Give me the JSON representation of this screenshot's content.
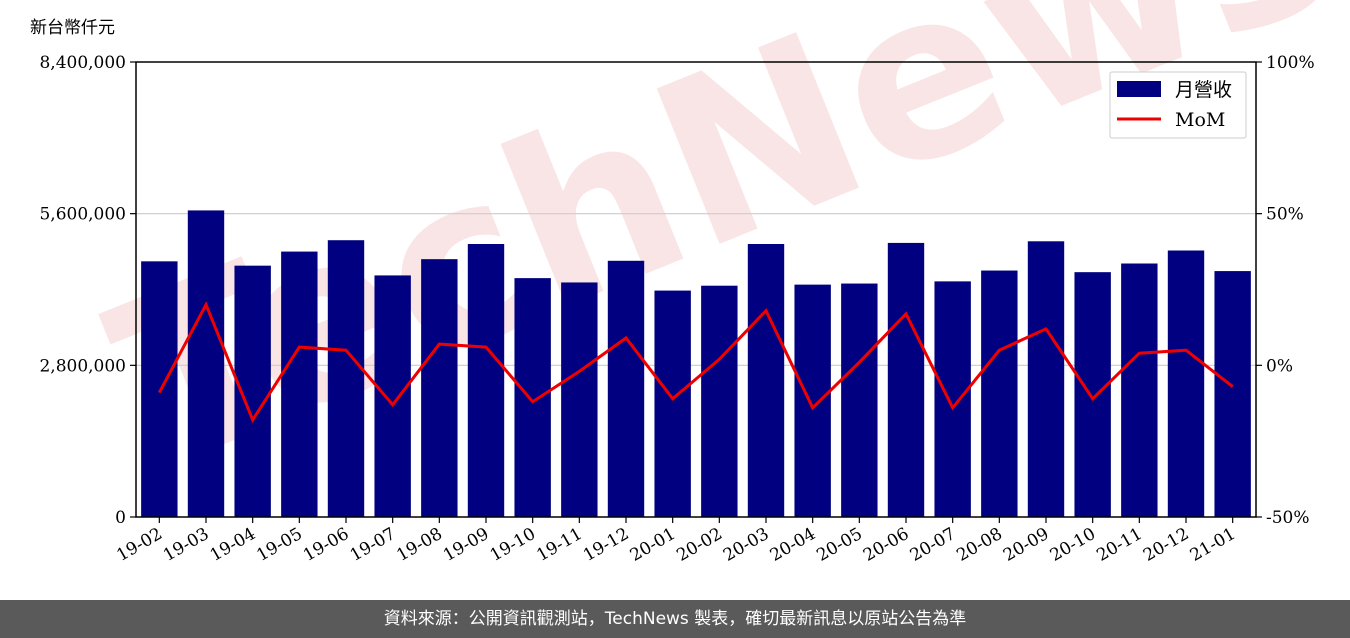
{
  "unit_label": "新台幣仟元",
  "watermark": "TechNews",
  "footer_text": "資料來源：公開資訊觀測站，TechNews 製表，確切最新訊息以原站公告為準",
  "colors": {
    "bar": "#000080",
    "line": "#ee0000",
    "grid": "#cccccc",
    "footer_bg": "#5a5a5a"
  },
  "chart_data": {
    "type": "bar",
    "categories": [
      "19-02",
      "19-03",
      "19-04",
      "19-05",
      "19-06",
      "19-07",
      "19-08",
      "19-09",
      "19-10",
      "19-11",
      "19-12",
      "20-01",
      "20-02",
      "20-03",
      "20-04",
      "20-05",
      "20-06",
      "20-07",
      "20-08",
      "20-09",
      "20-10",
      "20-11",
      "20-12",
      "21-01"
    ],
    "series": [
      {
        "name": "月營收",
        "type": "bar",
        "axis": "left",
        "values": [
          4720000,
          5660000,
          4640000,
          4900000,
          5110000,
          4460000,
          4760000,
          5040000,
          4410000,
          4330000,
          4730000,
          4180000,
          4270000,
          5040000,
          4290000,
          4310000,
          5060000,
          4350000,
          4550000,
          5090000,
          4520000,
          4680000,
          4920000,
          4540000
        ]
      },
      {
        "name": "MoM",
        "type": "line",
        "axis": "right",
        "values": [
          -9,
          20,
          -18,
          6,
          5,
          -13,
          7,
          6,
          -12,
          -2,
          9,
          -11,
          2,
          18,
          -14,
          1,
          17,
          -14,
          5,
          12,
          -11,
          4,
          5,
          -7
        ]
      }
    ],
    "ylim_left": [
      0,
      8400000
    ],
    "yticks_left": [
      "0",
      "2,800,000",
      "5,600,000",
      "8,400,000"
    ],
    "ylim_right": [
      -50,
      100
    ],
    "yticks_right": [
      "-50%",
      "0%",
      "50%",
      "100%"
    ],
    "grid": "horizontal",
    "legend_position": "top-right"
  }
}
